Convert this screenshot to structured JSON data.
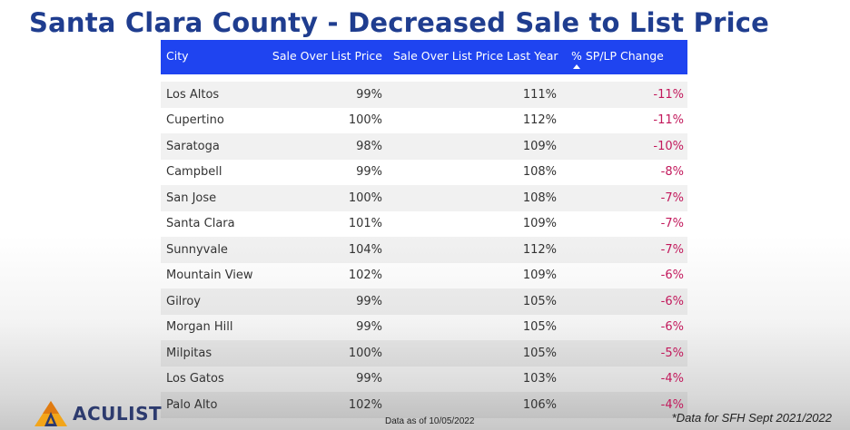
{
  "title": "Santa Clara County - Decreased Sale to List Price",
  "table": {
    "headers": [
      "City",
      "Sale Over List Price",
      "Sale Over List Price Last Year",
      "% SP/LP Change"
    ],
    "sorted_column": "% SP/LP Change",
    "rows": [
      {
        "city": "Los Altos",
        "current": "99%",
        "last_year": "111%",
        "change": "-11%"
      },
      {
        "city": "Cupertino",
        "current": "100%",
        "last_year": "112%",
        "change": "-11%"
      },
      {
        "city": "Saratoga",
        "current": "98%",
        "last_year": "109%",
        "change": "-10%"
      },
      {
        "city": "Campbell",
        "current": "99%",
        "last_year": "108%",
        "change": "-8%"
      },
      {
        "city": "San Jose",
        "current": "100%",
        "last_year": "108%",
        "change": "-7%"
      },
      {
        "city": "Santa Clara",
        "current": "101%",
        "last_year": "109%",
        "change": "-7%"
      },
      {
        "city": "Sunnyvale",
        "current": "104%",
        "last_year": "112%",
        "change": "-7%"
      },
      {
        "city": "Mountain View",
        "current": "102%",
        "last_year": "109%",
        "change": "-6%"
      },
      {
        "city": "Gilroy",
        "current": "99%",
        "last_year": "105%",
        "change": "-6%"
      },
      {
        "city": "Morgan Hill",
        "current": "99%",
        "last_year": "105%",
        "change": "-6%"
      },
      {
        "city": "Milpitas",
        "current": "100%",
        "last_year": "105%",
        "change": "-5%"
      },
      {
        "city": "Los Gatos",
        "current": "99%",
        "last_year": "103%",
        "change": "-4%"
      },
      {
        "city": "Palo Alto",
        "current": "102%",
        "last_year": "106%",
        "change": "-4%"
      }
    ]
  },
  "logo": {
    "text": "ACULIST",
    "icon": "aculist-logo-icon"
  },
  "data_date": "Data as of 10/05/2022",
  "footnote": "*Data for SFH Sept 2021/2022",
  "colors": {
    "title": "#1f3d8f",
    "header_bg": "#1f44f0",
    "negative_change": "#c2185b"
  }
}
